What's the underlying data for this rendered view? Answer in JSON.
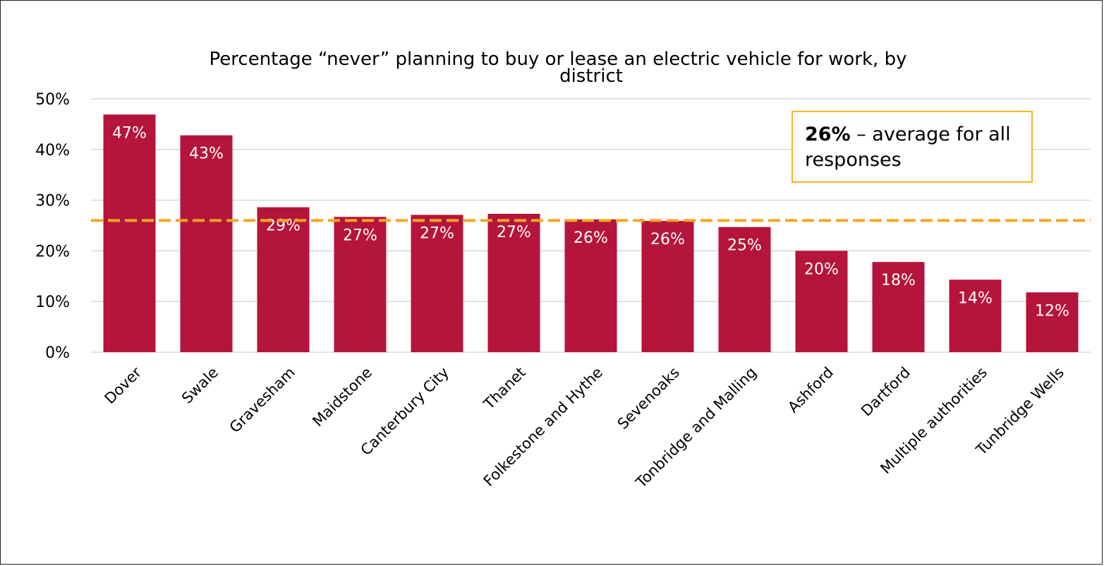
{
  "chart_data": {
    "type": "bar",
    "title_line1": "Percentage “never” planning to buy or lease an electric vehicle for work, by",
    "title_line2": "district",
    "categories": [
      "Dover",
      "Swale",
      "Gravesham",
      "Maidstone",
      "Canterbury City",
      "Thanet",
      "Folkestone and Hythe",
      "Sevenoaks",
      "Tonbridge and Malling",
      "Ashford",
      "Dartford",
      "Multiple authorities",
      "Tunbridge Wells"
    ],
    "values": [
      46.9,
      42.8,
      28.6,
      26.7,
      27.1,
      27.3,
      26.2,
      25.9,
      24.7,
      20.0,
      17.8,
      14.3,
      11.8
    ],
    "data_labels": [
      "47%",
      "43%",
      "29%",
      "27%",
      "27%",
      "27%",
      "26%",
      "26%",
      "25%",
      "20%",
      "18%",
      "14%",
      "12%"
    ],
    "ylim": [
      0,
      50
    ],
    "yticks": [
      0,
      10,
      20,
      30,
      40,
      50
    ],
    "ytick_labels": [
      "0%",
      "10%",
      "20%",
      "30%",
      "40%",
      "50%"
    ],
    "average_line": 26,
    "grid": true,
    "xlabel": "",
    "ylabel": ""
  },
  "callout": {
    "bold": "26%",
    "text": " – average for all responses"
  },
  "colors": {
    "bar": "#B5153A",
    "average_line": "#F5A623",
    "callout_border": "#F5B324",
    "grid": "#D9D9D9"
  }
}
